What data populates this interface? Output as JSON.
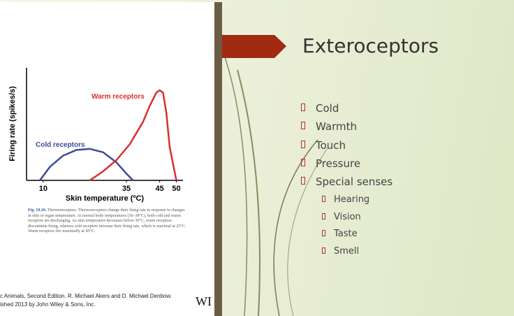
{
  "figure": {
    "chart_data": {
      "type": "line",
      "xlabel": "Skin temperature (ºC)",
      "ylabel": "Firing rate (spikes/s)",
      "xlim": [
        5,
        52
      ],
      "ylim": [
        0,
        100
      ],
      "xticks": [
        10,
        35,
        45,
        50
      ],
      "series": [
        {
          "name": "Cold receptors",
          "color": "#3b4a9c",
          "x": [
            9,
            12,
            16,
            20,
            24,
            28,
            32,
            35,
            37
          ],
          "values": [
            0,
            12,
            22,
            27,
            28,
            25,
            16,
            6,
            0
          ]
        },
        {
          "name": "Warm receptors",
          "color": "#d9302a",
          "x": [
            24,
            28,
            32,
            36,
            40,
            42,
            44,
            45,
            46,
            47,
            48,
            50
          ],
          "values": [
            0,
            8,
            18,
            32,
            52,
            66,
            78,
            80,
            78,
            60,
            30,
            0
          ]
        }
      ]
    },
    "caption_label": "Fig. 10.10.",
    "caption": "Thermoreceptors. Thermoreceptors change their firing rate in response to changes in skin or organ temperature. At normal body temperatures (36–38°C), both cold and warm receptors are discharging. As skin temperature decreases below 30°C, warm receptors discontinue firing, whereas cold receptors increase their firing rate, which is maximal at 25°C. Warm receptors fire maximally at 45°C.",
    "credit": [
      "c Animals, Second Edition. R. Michael Akers and D. Michael Denbow.",
      "ished 2013 by John Wiley & Sons, Inc."
    ],
    "publisher": "WI"
  },
  "slide": {
    "title": "Exteroceptors",
    "bullets": [
      "Cold",
      "Warmth",
      "Touch",
      "Pressure",
      "Special senses"
    ],
    "sub_bullets": [
      "Hearing",
      "Vision",
      "Taste",
      "Smell"
    ]
  }
}
